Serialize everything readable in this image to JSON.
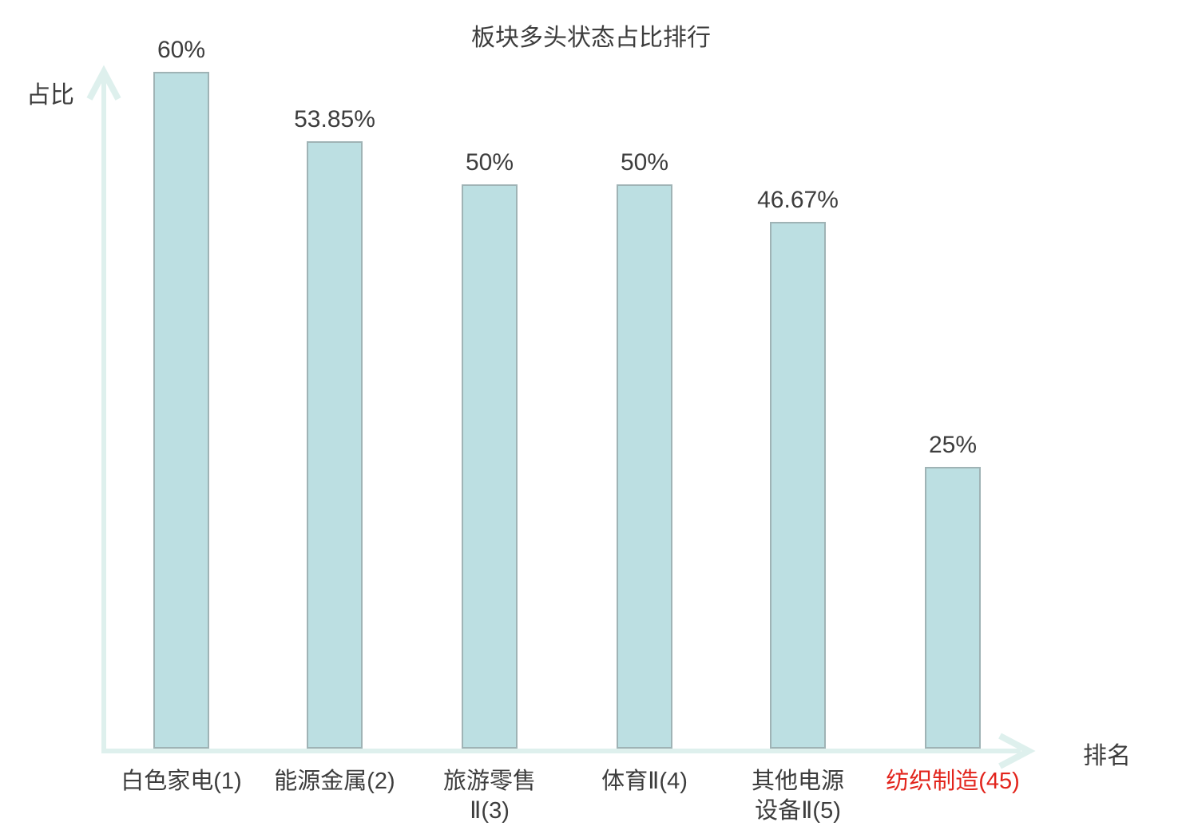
{
  "page": {
    "background": "#ffffff"
  },
  "chart_data": {
    "type": "bar",
    "title": "板块多头状态占比排行",
    "xlabel": "排名",
    "ylabel": "占比",
    "categories": [
      "白色家电(1)",
      "能源金属(2)",
      "旅游零售Ⅱ(3)",
      "体育Ⅱ(4)",
      "其他电源设备Ⅱ(5)",
      "纺织制造(45)"
    ],
    "category_lines": [
      [
        "白色家电(1)"
      ],
      [
        "能源金属(2)"
      ],
      [
        "旅游零售",
        "Ⅱ(3)"
      ],
      [
        "体育Ⅱ(4)"
      ],
      [
        "其他电源",
        "设备Ⅱ(5)"
      ],
      [
        "纺织制造(45)"
      ]
    ],
    "values": [
      60,
      53.85,
      50,
      50,
      46.67,
      25
    ],
    "value_labels": [
      "60%",
      "53.85%",
      "50%",
      "50%",
      "46.67%",
      "25%"
    ],
    "ylim": [
      0,
      60
    ],
    "grid": false,
    "legend": "none",
    "highlight_index": 5,
    "colors": {
      "bar_fill": "#bcdfe2",
      "bar_border": "#9fb3b5",
      "axis": "#def0ed",
      "text": "#3d3d3d",
      "highlight": "#e2241c"
    }
  }
}
